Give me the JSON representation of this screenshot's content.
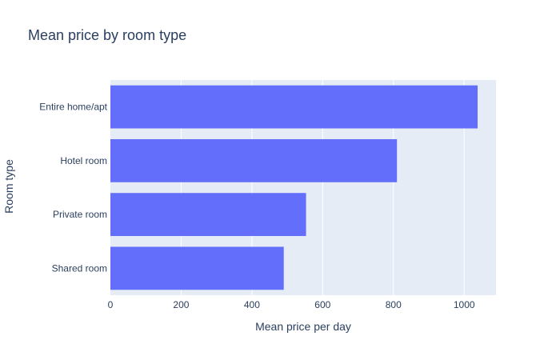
{
  "chart_data": {
    "type": "bar",
    "orientation": "horizontal",
    "title": "Mean price by room type",
    "xlabel": "Mean price per day",
    "ylabel": "Room type",
    "categories": [
      "Entire home/apt",
      "Hotel room",
      "Private room",
      "Shared room"
    ],
    "values": [
      1038,
      810,
      553,
      490
    ],
    "xlim": [
      0,
      1090
    ],
    "xticks": [
      0,
      200,
      400,
      600,
      800,
      1000
    ],
    "grid": true,
    "legend": "none",
    "colors": {
      "bar": "#636efa",
      "plot_background": "#e5ecf6",
      "grid": "#ffffff",
      "text": "#2a3f5f"
    }
  }
}
